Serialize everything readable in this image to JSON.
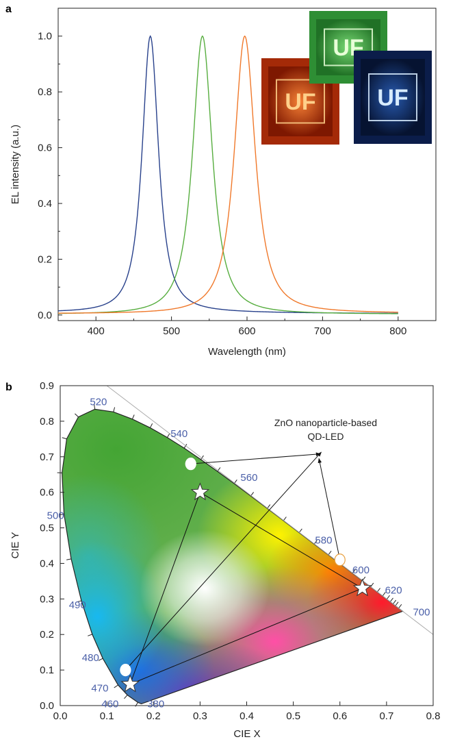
{
  "chart_data": [
    {
      "panel": "a",
      "type": "line",
      "xlabel": "Wavelength (nm)",
      "ylabel": "EL intensity (a.u.)",
      "xlim": [
        350,
        850
      ],
      "ylim": [
        -0.02,
        1.1
      ],
      "x_ticks": [
        400,
        500,
        600,
        700,
        800
      ],
      "y_ticks": [
        0.0,
        0.2,
        0.4,
        0.6,
        0.8,
        1.0
      ],
      "y_tick_labels": [
        "0.0",
        "0.2",
        "0.4",
        "0.6",
        "0.8",
        "1.0"
      ],
      "series": [
        {
          "color": "#27408b",
          "peak_nm": 472,
          "fwhm_nm": 30,
          "baseline_left": 0.01,
          "baseline_right": 0.005,
          "tail": 0.012
        },
        {
          "color": "#56ad3e",
          "peak_nm": 541,
          "fwhm_nm": 36,
          "baseline_left": 0.003,
          "baseline_right": 0.003,
          "tail": 0.004
        },
        {
          "color": "#f0782a",
          "peak_nm": 597,
          "fwhm_nm": 38,
          "baseline_left": 0.005,
          "baseline_right": 0.006,
          "tail": 0.008
        }
      ],
      "insets": [
        {
          "text": "UF",
          "bg": "#a42a08",
          "glow": "#ffd08a"
        },
        {
          "text": "UF",
          "bg": "#2e8e34",
          "glow": "#e8ffd8"
        },
        {
          "text": "UF",
          "bg": "#0b1d4a",
          "glow": "#d8ecff"
        }
      ]
    },
    {
      "panel": "b",
      "type": "scatter",
      "xlabel": "CIE X",
      "ylabel": "CIE Y",
      "xlim": [
        0.0,
        0.8
      ],
      "ylim": [
        0.0,
        0.9
      ],
      "x_ticks": [
        0.0,
        0.1,
        0.2,
        0.3,
        0.4,
        0.5,
        0.6,
        0.7,
        0.8
      ],
      "y_ticks": [
        0.0,
        0.1,
        0.2,
        0.3,
        0.4,
        0.5,
        0.6,
        0.7,
        0.8,
        0.9
      ],
      "x_tick_labels": [
        "0.0",
        "0.1",
        "0.2",
        "0.3",
        "0.4",
        "0.5",
        "0.6",
        "0.7",
        "0.8"
      ],
      "y_tick_labels": [
        "0.0",
        "0.1",
        "0.2",
        "0.3",
        "0.4",
        "0.5",
        "0.6",
        "0.7",
        "0.8",
        "0.9"
      ],
      "locus": [
        [
          0.1741,
          0.005
        ],
        [
          0.1666,
          0.0089
        ],
        [
          0.144,
          0.0297
        ],
        [
          0.1241,
          0.0578
        ],
        [
          0.0913,
          0.1327
        ],
        [
          0.0687,
          0.2007
        ],
        [
          0.0454,
          0.295
        ],
        [
          0.0235,
          0.4127
        ],
        [
          0.0082,
          0.5384
        ],
        [
          0.0039,
          0.6548
        ],
        [
          0.0139,
          0.7502
        ],
        [
          0.0389,
          0.812
        ],
        [
          0.0743,
          0.8338
        ],
        [
          0.1142,
          0.8262
        ],
        [
          0.1547,
          0.8059
        ],
        [
          0.1929,
          0.7816
        ],
        [
          0.2296,
          0.7543
        ],
        [
          0.2658,
          0.7243
        ],
        [
          0.3016,
          0.6923
        ],
        [
          0.3373,
          0.6589
        ],
        [
          0.3731,
          0.6245
        ],
        [
          0.4087,
          0.5896
        ],
        [
          0.4441,
          0.5547
        ],
        [
          0.4788,
          0.5202
        ],
        [
          0.5125,
          0.4866
        ],
        [
          0.5448,
          0.4544
        ],
        [
          0.5752,
          0.4242
        ],
        [
          0.6029,
          0.3965
        ],
        [
          0.627,
          0.3725
        ],
        [
          0.6482,
          0.3514
        ],
        [
          0.6658,
          0.334
        ],
        [
          0.6801,
          0.3197
        ],
        [
          0.6915,
          0.3083
        ],
        [
          0.7006,
          0.2993
        ],
        [
          0.7079,
          0.292
        ],
        [
          0.714,
          0.2859
        ],
        [
          0.719,
          0.2809
        ],
        [
          0.726,
          0.274
        ],
        [
          0.7347,
          0.2653
        ]
      ],
      "wavelength_labels": [
        {
          "text": "380",
          "x": 0.205,
          "y": 0.005
        },
        {
          "text": "460",
          "x": 0.107,
          "y": 0.005
        },
        {
          "text": "470",
          "x": 0.085,
          "y": 0.049
        },
        {
          "text": "480",
          "x": 0.065,
          "y": 0.135
        },
        {
          "text": "490",
          "x": 0.037,
          "y": 0.283
        },
        {
          "text": "500",
          "x": -0.01,
          "y": 0.535
        },
        {
          "text": "520",
          "x": 0.082,
          "y": 0.855
        },
        {
          "text": "540",
          "x": 0.255,
          "y": 0.765
        },
        {
          "text": "560",
          "x": 0.405,
          "y": 0.642
        },
        {
          "text": "580",
          "x": 0.565,
          "y": 0.465
        },
        {
          "text": "600",
          "x": 0.645,
          "y": 0.382
        },
        {
          "text": "620",
          "x": 0.715,
          "y": 0.325
        },
        {
          "text": "700",
          "x": 0.775,
          "y": 0.263
        }
      ],
      "triangle_stars": [
        [
          0.15,
          0.06
        ],
        [
          0.3,
          0.6
        ],
        [
          0.648,
          0.33
        ]
      ],
      "dots": [
        [
          0.14,
          0.1
        ],
        [
          0.28,
          0.68
        ],
        [
          0.6,
          0.41
        ]
      ],
      "dot_edges": [
        "#ffffff",
        "#ffffff",
        "#e8a040"
      ],
      "annotation_lines": [
        "ZnO nanoparticle-based",
        "QD-LED"
      ],
      "annotation_arrow_tips": [
        [
          0.56,
          0.713
        ],
        [
          0.558,
          0.708
        ],
        [
          0.555,
          0.695
        ]
      ],
      "diagonal_line": [
        [
          0.1,
          0.9
        ],
        [
          0.8,
          0.2
        ]
      ]
    }
  ],
  "panel_labels": [
    "a",
    "b"
  ]
}
